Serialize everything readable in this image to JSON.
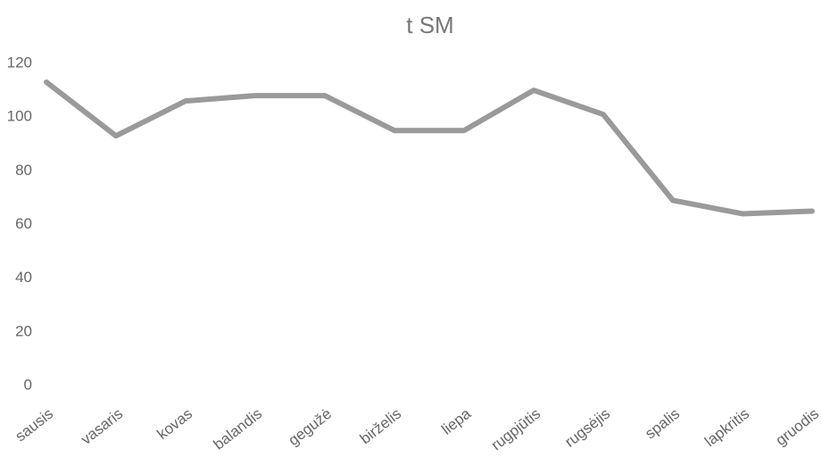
{
  "chart_data": {
    "type": "line",
    "title": "t SM",
    "categories": [
      "sausis",
      "vasaris",
      "kovas",
      "balandis",
      "gegužė",
      "birželis",
      "liepa",
      "rugpjūtis",
      "rugsėjis",
      "spalis",
      "lapkritis",
      "gruodis"
    ],
    "values": [
      113,
      93,
      106,
      108,
      108,
      95,
      95,
      110,
      101,
      69,
      64,
      65
    ],
    "color": "#9a9a9a",
    "ylim": [
      0,
      120
    ],
    "yticks": [
      0,
      20,
      40,
      60,
      80,
      100,
      120
    ],
    "grid": false
  }
}
